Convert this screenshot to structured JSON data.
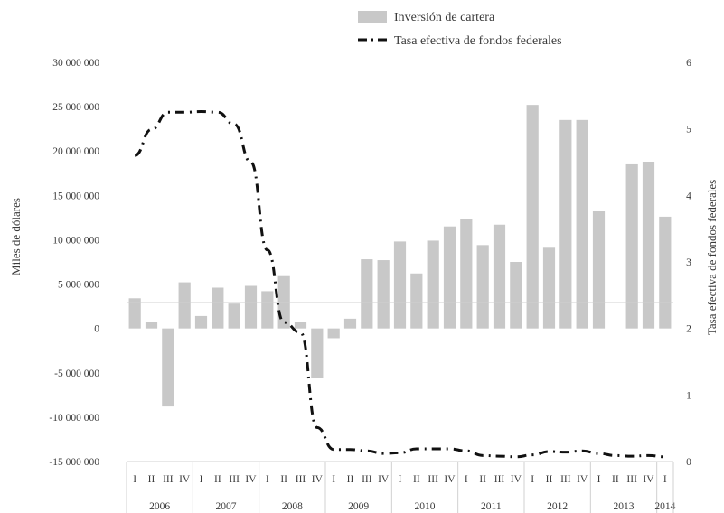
{
  "chart_data": {
    "type": "bar",
    "quarter_labels": [
      "I",
      "II",
      "III",
      "IV",
      "I",
      "II",
      "III",
      "IV",
      "I",
      "II",
      "III",
      "IV",
      "I",
      "II",
      "III",
      "IV",
      "I",
      "II",
      "III",
      "IV",
      "I",
      "II",
      "III",
      "IV",
      "I",
      "II",
      "III",
      "IV",
      "I",
      "II",
      "III",
      "IV",
      "I"
    ],
    "year_groups": [
      {
        "label": "2006",
        "quarters": 4
      },
      {
        "label": "2007",
        "quarters": 4
      },
      {
        "label": "2008",
        "quarters": 4
      },
      {
        "label": "2009",
        "quarters": 4
      },
      {
        "label": "2010",
        "quarters": 4
      },
      {
        "label": "2011",
        "quarters": 4
      },
      {
        "label": "2012",
        "quarters": 4
      },
      {
        "label": "2013",
        "quarters": 4
      },
      {
        "label": "2014",
        "quarters": 1
      }
    ],
    "series": [
      {
        "name": "Inversión de cartera",
        "type": "bar",
        "axis": "left",
        "color": "#c8c8c8",
        "values": [
          3400000,
          700000,
          -8800000,
          5200000,
          1400000,
          4600000,
          2800000,
          4800000,
          4200000,
          5900000,
          700000,
          -5600000,
          -1100000,
          1100000,
          7800000,
          7700000,
          9800000,
          6200000,
          9900000,
          11500000,
          12300000,
          9400000,
          11700000,
          7500000,
          25200000,
          9100000,
          23500000,
          23500000,
          13200000,
          0,
          18500000,
          18800000,
          12600000
        ]
      },
      {
        "name": "Tasa efectiva de fondos federales",
        "type": "line",
        "axis": "right",
        "color": "#111111",
        "line_style": "dash-dot",
        "values": [
          4.6,
          4.99,
          5.25,
          5.25,
          5.26,
          5.25,
          5.07,
          4.5,
          3.18,
          2.09,
          1.94,
          0.51,
          0.18,
          0.18,
          0.16,
          0.12,
          0.13,
          0.19,
          0.19,
          0.19,
          0.16,
          0.09,
          0.08,
          0.07,
          0.1,
          0.15,
          0.14,
          0.16,
          0.12,
          0.09,
          0.08,
          0.09,
          0.07
        ]
      }
    ],
    "ylabel": "Miles de dólares",
    "ylabel_right": "Tasa efectiva de fondos federales",
    "ylim": [
      -15000000,
      30000000
    ],
    "ylim_right": [
      0,
      6
    ],
    "yticks": [
      "30 000 000",
      "25 000 000",
      "20 000 000",
      "15 000 000",
      "10 000 000",
      "5 000 000",
      "0",
      "-5 000 000",
      "-10 000 000",
      "-15 000 000"
    ],
    "yticks_right": [
      "6",
      "5",
      "4",
      "3",
      "2",
      "1",
      "0"
    ],
    "legend_position": "top-right",
    "grid": false
  }
}
